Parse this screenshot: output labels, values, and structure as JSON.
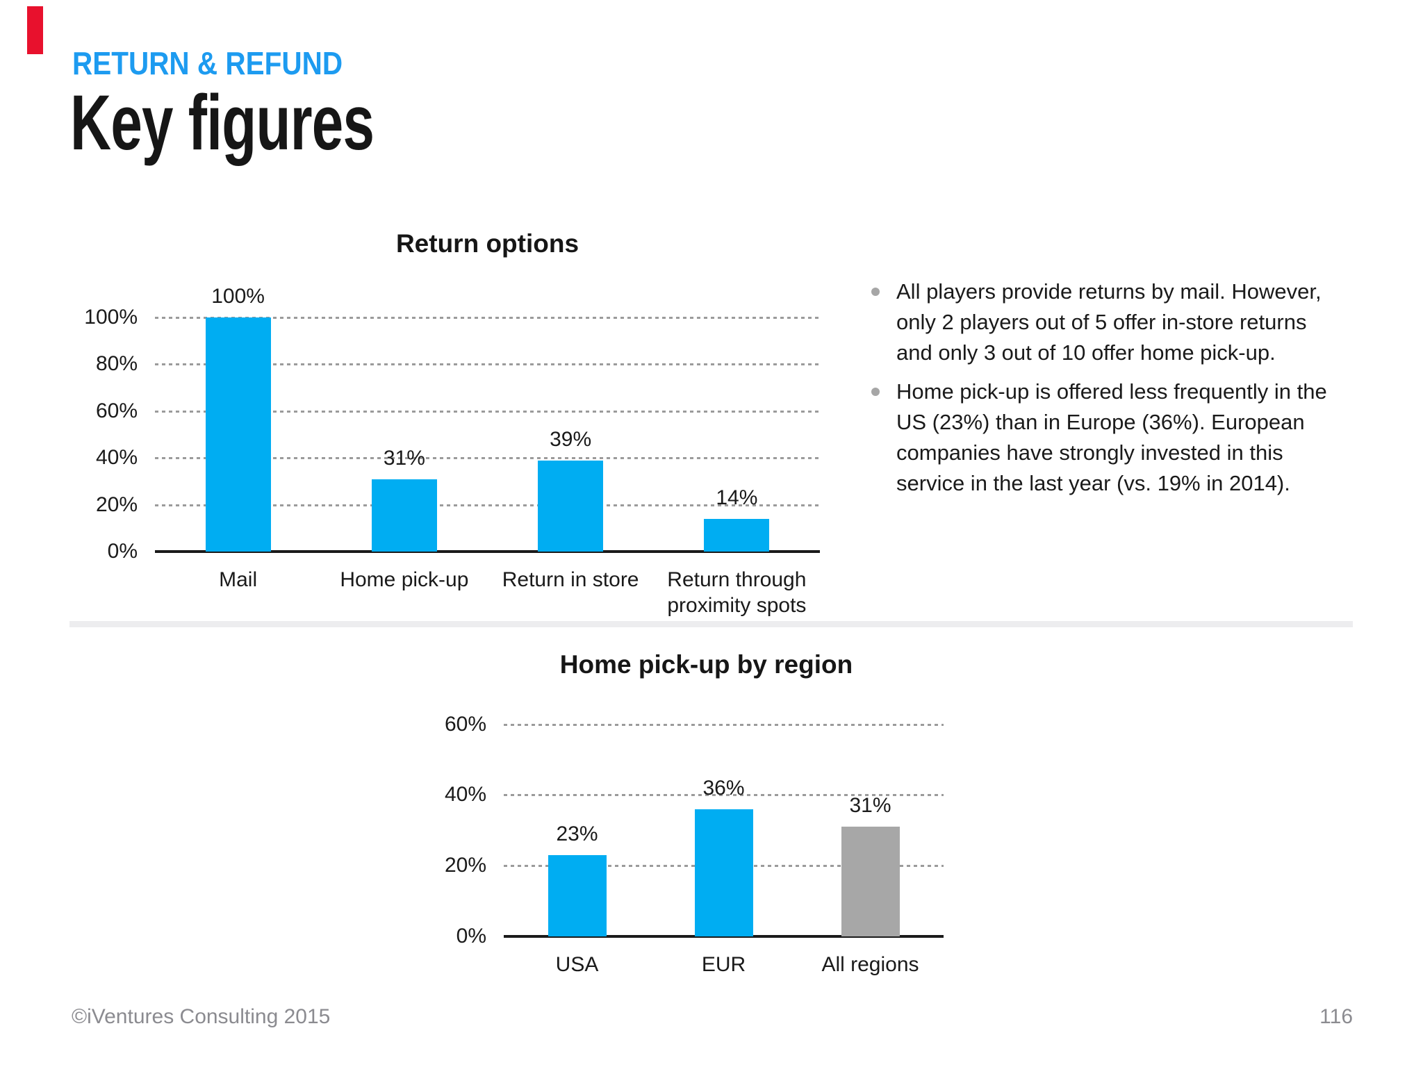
{
  "header": {
    "eyebrow": "RETURN & REFUND",
    "title": "Key figures"
  },
  "colors": {
    "accent_red": "#e8112d",
    "accent_blue": "#1d9bf0",
    "bar_blue": "#00adf2",
    "bar_gray": "#a7a7a7",
    "gridline_gray": "#9b9b9b",
    "footer_gray": "#8b8b90"
  },
  "bullets": [
    "All players provide returns by mail. However, only 2 players out of 5 offer in-store returns and only 3 out of 10 offer home pick-up.",
    "Home pick-up is offered less frequently in the US (23%)  than in Europe (36%). European companies have strongly invested in this service in the last year (vs. 19% in 2014)."
  ],
  "chart_data": [
    {
      "type": "bar",
      "title": "Return options",
      "categories": [
        "Mail",
        "Home pick-up",
        "Return in store",
        "Return through proximity spots"
      ],
      "values": [
        100,
        31,
        39,
        14
      ],
      "value_labels": [
        "100%",
        "31%",
        "39%",
        "14%"
      ],
      "yticks": [
        "0%",
        "20%",
        "40%",
        "60%",
        "80%",
        "100%"
      ],
      "ylim": [
        0,
        100
      ],
      "xlabel": "",
      "ylabel": "",
      "grid": "dotted-horizontal",
      "legend": "none",
      "bar_colors": [
        "#00adf2",
        "#00adf2",
        "#00adf2",
        "#00adf2"
      ]
    },
    {
      "type": "bar",
      "title": "Home pick-up by region",
      "categories": [
        "USA",
        "EUR",
        "All regions"
      ],
      "values": [
        23,
        36,
        31
      ],
      "value_labels": [
        "23%",
        "36%",
        "31%"
      ],
      "yticks": [
        "0%",
        "20%",
        "40%",
        "60%"
      ],
      "ylim": [
        0,
        60
      ],
      "xlabel": "",
      "ylabel": "",
      "grid": "dotted-horizontal",
      "legend": "none",
      "bar_colors": [
        "#00adf2",
        "#00adf2",
        "#a7a7a7"
      ]
    }
  ],
  "footer": {
    "copyright": "©iVentures Consulting 2015",
    "page": "116"
  }
}
